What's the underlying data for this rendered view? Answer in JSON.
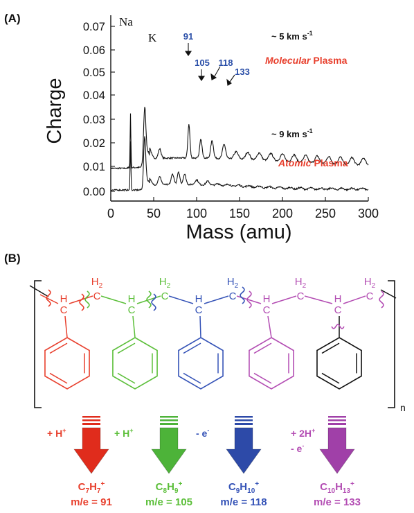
{
  "panel_a": {
    "label": "(A)",
    "ylabel": "Charge",
    "xlabel": "Mass (amu)",
    "x_ticks": [
      "0",
      "50",
      "100",
      "150",
      "200",
      "250",
      "300"
    ],
    "y_ticks": [
      "0.07",
      "0.06",
      "0.05",
      "0.04",
      "0.03",
      "0.02",
      "0.01",
      "0.00"
    ],
    "top_trace": {
      "speed_text": "~ 5 km s",
      "speed_sup": "-1",
      "plasma_emph": "Molecular",
      "plasma_word": "Plasma",
      "peak_labels": [
        "Na",
        "K"
      ],
      "mass_labels": [
        "91",
        "105",
        "118",
        "133"
      ]
    },
    "bottom_trace": {
      "speed_text": "~ 9 km s",
      "speed_sup": "-1",
      "plasma_emph": "Atomic",
      "plasma_word": "Plasma"
    }
  },
  "panel_b": {
    "label": "(B)",
    "repeat_subscript": "n",
    "h2_base": "H",
    "h2_sub": "2",
    "h_label": "H",
    "c_label": "C",
    "fragments": [
      {
        "color": "#e8402e",
        "arrow_color": "#e02c1c",
        "add_lines": [
          "+ H+"
        ],
        "formula": [
          [
            "C",
            ""
          ],
          [
            "7",
            "sub"
          ],
          [
            "H",
            ""
          ],
          [
            "7",
            "sub"
          ],
          [
            "+",
            "sup"
          ]
        ],
        "mass": "m/e = 91"
      },
      {
        "color": "#5cbf3a",
        "arrow_color": "#4db339",
        "add_lines": [
          "+ H+"
        ],
        "formula": [
          [
            "C",
            ""
          ],
          [
            "8",
            "sub"
          ],
          [
            "H",
            ""
          ],
          [
            "9",
            "sub"
          ],
          [
            "+",
            "sup"
          ]
        ],
        "mass": "m/e = 105"
      },
      {
        "color": "#3553b7",
        "arrow_color": "#2d4aa8",
        "add_lines": [
          "- e-"
        ],
        "formula": [
          [
            "C",
            ""
          ],
          [
            "9",
            "sub"
          ],
          [
            "H",
            ""
          ],
          [
            "10",
            "sub"
          ],
          [
            "+",
            "sup"
          ]
        ],
        "mass": "m/e = 118"
      },
      {
        "color": "#b34db3",
        "arrow_color": "#a040a8",
        "add_lines": [
          "+ 2H+",
          "- e-"
        ],
        "formula": [
          [
            "C",
            ""
          ],
          [
            "10",
            "sub"
          ],
          [
            "H",
            ""
          ],
          [
            "13",
            "sub"
          ],
          [
            "+",
            "sup"
          ]
        ],
        "mass": "m/e = 133"
      }
    ]
  },
  "colors": {
    "text": "#111111",
    "emphasis_red": "#e8402e",
    "mass_blue": "#2b4fa8",
    "black_ring": "#111111"
  }
}
